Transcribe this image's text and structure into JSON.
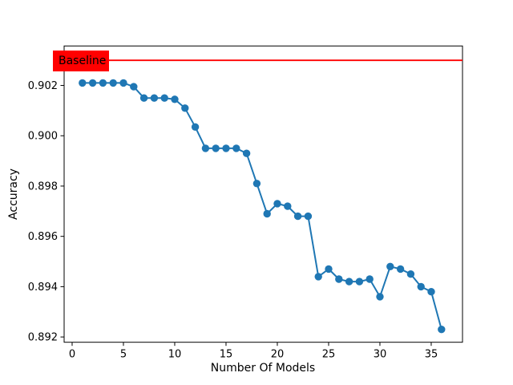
{
  "figure": {
    "background": "#ffffff"
  },
  "chart_data": {
    "type": "line",
    "xlabel": "Number Of Models",
    "ylabel": "Accuracy",
    "x": [
      1,
      2,
      3,
      4,
      5,
      6,
      7,
      8,
      9,
      10,
      11,
      12,
      13,
      14,
      15,
      16,
      17,
      18,
      19,
      20,
      21,
      22,
      23,
      24,
      25,
      26,
      27,
      28,
      29,
      30,
      31,
      32,
      33,
      34,
      35,
      36
    ],
    "series": [
      {
        "name": "accuracy",
        "color": "#1f77b4",
        "values": [
          0.9021,
          0.9021,
          0.9021,
          0.9021,
          0.9021,
          0.90195,
          0.9015,
          0.9015,
          0.9015,
          0.90145,
          0.9011,
          0.90035,
          0.8995,
          0.8995,
          0.8995,
          0.8995,
          0.8993,
          0.8981,
          0.8969,
          0.8973,
          0.8972,
          0.8968,
          0.8968,
          0.8944,
          0.8947,
          0.8943,
          0.8942,
          0.8942,
          0.8943,
          0.8936,
          0.8948,
          0.8947,
          0.8945,
          0.894,
          0.8938,
          0.8923
        ]
      }
    ],
    "baseline": {
      "label": "Baseline",
      "value": 0.903,
      "line_color": "#ff0000",
      "label_bg": "#ff0000",
      "label_text_color": "#000000"
    },
    "xlim": [
      -0.78,
      38.05
    ],
    "ylim": [
      0.89179,
      0.90357
    ],
    "xticks": [
      0,
      5,
      10,
      15,
      20,
      25,
      30,
      35
    ],
    "xtick_labels": [
      "0",
      "5",
      "10",
      "15",
      "20",
      "25",
      "30",
      "35"
    ],
    "yticks": [
      0.892,
      0.894,
      0.896,
      0.898,
      0.9,
      0.902
    ],
    "ytick_labels": [
      "0.892",
      "0.894",
      "0.896",
      "0.898",
      "0.900",
      "0.902"
    ],
    "grid": false,
    "legend": null,
    "marker": "o",
    "marker_size": 4.7,
    "line_width": 2,
    "spine_color": "#000000"
  }
}
